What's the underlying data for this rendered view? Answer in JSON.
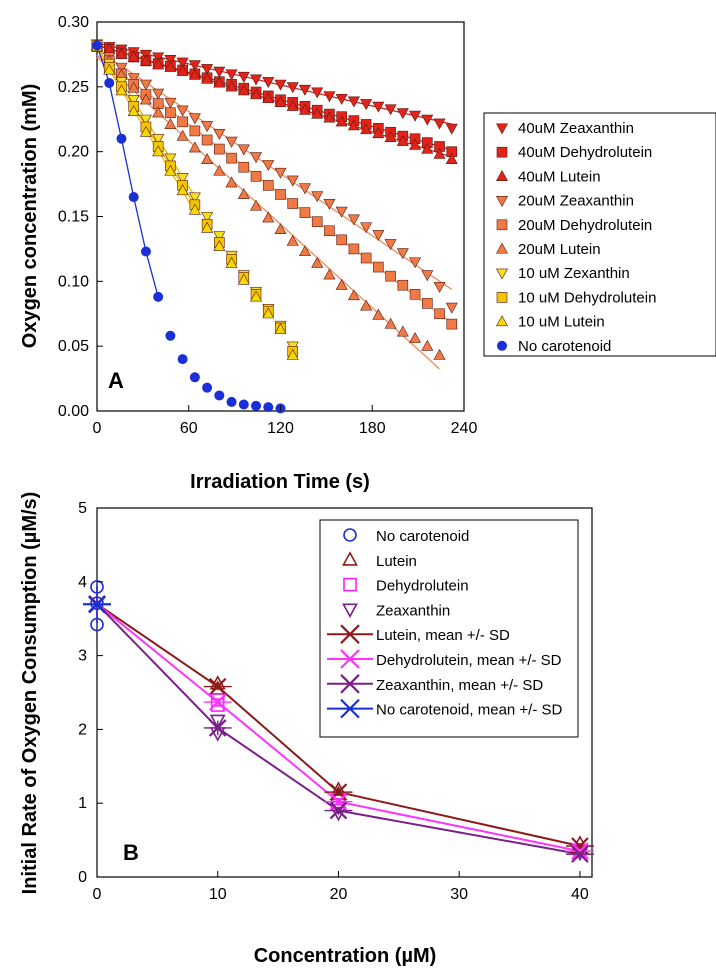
{
  "chart_data": [
    {
      "panel": "A",
      "type": "scatter",
      "xlabel": "Irradiation Time (s)",
      "ylabel": "Oxygen concentration (mM)",
      "xlim": [
        0,
        240
      ],
      "ylim": [
        0.0,
        0.3
      ],
      "xticks": [
        "0",
        "60",
        "120",
        "180",
        "240"
      ],
      "yticks": [
        "0.00",
        "0.05",
        "0.10",
        "0.15",
        "0.20",
        "0.25",
        "0.30"
      ],
      "legend_position": "right",
      "series": [
        {
          "name": "40uM Zeaxanthin",
          "marker": "triangle-down",
          "color": "#e2231a",
          "fit": true,
          "fit_color": "#c62828",
          "x": [
            0,
            8,
            16,
            24,
            32,
            40,
            48,
            56,
            64,
            72,
            80,
            88,
            96,
            104,
            112,
            120,
            128,
            136,
            144,
            152,
            160,
            168,
            176,
            184,
            192,
            200,
            208,
            216,
            224,
            232
          ],
          "y": [
            0.283,
            0.281,
            0.279,
            0.277,
            0.275,
            0.273,
            0.271,
            0.269,
            0.267,
            0.264,
            0.262,
            0.26,
            0.258,
            0.256,
            0.254,
            0.252,
            0.25,
            0.248,
            0.246,
            0.243,
            0.241,
            0.239,
            0.237,
            0.235,
            0.233,
            0.23,
            0.228,
            0.225,
            0.222,
            0.218
          ]
        },
        {
          "name": "40uM Dehydrolutein",
          "marker": "square",
          "color": "#e2231a",
          "fit": true,
          "fit_color": "#c62828",
          "x": [
            0,
            8,
            16,
            24,
            32,
            40,
            48,
            56,
            64,
            72,
            80,
            88,
            96,
            104,
            112,
            120,
            128,
            136,
            144,
            152,
            160,
            168,
            176,
            184,
            192,
            200,
            208,
            216,
            224,
            232
          ],
          "y": [
            0.282,
            0.279,
            0.276,
            0.273,
            0.27,
            0.268,
            0.266,
            0.263,
            0.26,
            0.257,
            0.254,
            0.252,
            0.249,
            0.246,
            0.243,
            0.24,
            0.238,
            0.235,
            0.232,
            0.229,
            0.227,
            0.224,
            0.221,
            0.218,
            0.215,
            0.212,
            0.21,
            0.207,
            0.204,
            0.2
          ]
        },
        {
          "name": "40uM Lutein",
          "marker": "triangle-up",
          "color": "#e2231a",
          "fit": true,
          "fit_color": "#c62828",
          "x": [
            0,
            8,
            16,
            24,
            32,
            40,
            48,
            56,
            64,
            72,
            80,
            88,
            96,
            104,
            112,
            120,
            128,
            136,
            144,
            152,
            160,
            168,
            176,
            184,
            192,
            200,
            208,
            216,
            224,
            232
          ],
          "y": [
            0.282,
            0.279,
            0.275,
            0.273,
            0.27,
            0.267,
            0.265,
            0.262,
            0.259,
            0.256,
            0.253,
            0.25,
            0.247,
            0.244,
            0.241,
            0.238,
            0.235,
            0.232,
            0.229,
            0.226,
            0.223,
            0.22,
            0.217,
            0.214,
            0.211,
            0.208,
            0.205,
            0.202,
            0.198,
            0.194
          ]
        },
        {
          "name": "20uM Zeaxanthin",
          "marker": "triangle-down",
          "color": "#f07a45",
          "fit": true,
          "fit_color": "#f08a5d",
          "x": [
            0,
            8,
            16,
            24,
            32,
            40,
            48,
            56,
            64,
            72,
            80,
            88,
            96,
            104,
            112,
            120,
            128,
            136,
            144,
            152,
            160,
            168,
            176,
            184,
            192,
            200,
            208,
            216,
            224,
            232
          ],
          "y": [
            0.283,
            0.273,
            0.265,
            0.257,
            0.252,
            0.245,
            0.238,
            0.232,
            0.226,
            0.22,
            0.214,
            0.208,
            0.202,
            0.196,
            0.19,
            0.184,
            0.178,
            0.172,
            0.166,
            0.16,
            0.154,
            0.148,
            0.142,
            0.136,
            0.129,
            0.122,
            0.115,
            0.105,
            0.096,
            0.08
          ]
        },
        {
          "name": "20uM Dehydrolutein",
          "marker": "square",
          "color": "#f07a45",
          "fit": true,
          "fit_color": "#f08a5d",
          "x": [
            0,
            8,
            16,
            24,
            32,
            40,
            48,
            56,
            64,
            72,
            80,
            88,
            96,
            104,
            112,
            120,
            128,
            136,
            144,
            152,
            160,
            168,
            176,
            184,
            192,
            200,
            208,
            216,
            224,
            232
          ],
          "y": [
            0.281,
            0.27,
            0.26,
            0.252,
            0.244,
            0.237,
            0.23,
            0.223,
            0.216,
            0.209,
            0.202,
            0.195,
            0.188,
            0.181,
            0.174,
            0.167,
            0.16,
            0.153,
            0.146,
            0.139,
            0.132,
            0.125,
            0.118,
            0.111,
            0.104,
            0.097,
            0.09,
            0.083,
            0.075,
            0.067
          ]
        },
        {
          "name": "20uM Lutein",
          "marker": "triangle-up",
          "color": "#f07a45",
          "fit": true,
          "fit_color": "#f08a5d",
          "x": [
            0,
            8,
            16,
            24,
            32,
            40,
            48,
            56,
            64,
            72,
            80,
            88,
            96,
            104,
            112,
            120,
            128,
            136,
            144,
            152,
            160,
            168,
            176,
            184,
            192,
            200,
            208,
            216,
            224
          ],
          "y": [
            0.281,
            0.27,
            0.259,
            0.249,
            0.24,
            0.23,
            0.221,
            0.212,
            0.203,
            0.194,
            0.185,
            0.176,
            0.167,
            0.158,
            0.149,
            0.14,
            0.131,
            0.123,
            0.114,
            0.105,
            0.097,
            0.089,
            0.081,
            0.074,
            0.067,
            0.061,
            0.056,
            0.05,
            0.043
          ]
        },
        {
          "name": "10 uM Zexanthin",
          "marker": "triangle-down",
          "color": "#f5e020",
          "fit": true,
          "fit_color": "#f0b800",
          "x": [
            0,
            8,
            16,
            24,
            32,
            40,
            48,
            56,
            64,
            72,
            80,
            88,
            96,
            104,
            112,
            120,
            128
          ],
          "y": [
            0.283,
            0.268,
            0.254,
            0.24,
            0.225,
            0.21,
            0.195,
            0.18,
            0.165,
            0.15,
            0.135,
            0.12,
            0.105,
            0.092,
            0.079,
            0.066,
            0.05
          ]
        },
        {
          "name": "10 uM Dehydrolutein",
          "marker": "square",
          "color": "#f5c400",
          "fit": true,
          "fit_color": "#f0b800",
          "x": [
            0,
            8,
            16,
            24,
            32,
            40,
            48,
            56,
            64,
            72,
            80,
            88,
            96,
            104,
            112,
            120,
            128
          ],
          "y": [
            0.282,
            0.265,
            0.25,
            0.235,
            0.219,
            0.204,
            0.189,
            0.174,
            0.159,
            0.144,
            0.13,
            0.117,
            0.103,
            0.09,
            0.077,
            0.064,
            0.046
          ]
        },
        {
          "name": "10 uM Lutein",
          "marker": "triangle-up",
          "color": "#f5d800",
          "fit": true,
          "fit_color": "#f0b800",
          "x": [
            0,
            8,
            16,
            24,
            32,
            40,
            48,
            56,
            64,
            72,
            80,
            88,
            96,
            104,
            112,
            120,
            128
          ],
          "y": [
            0.281,
            0.263,
            0.247,
            0.231,
            0.215,
            0.2,
            0.185,
            0.17,
            0.155,
            0.141,
            0.127,
            0.114,
            0.101,
            0.088,
            0.075,
            0.063,
            0.043
          ]
        },
        {
          "name": "No carotenoid",
          "marker": "circle",
          "color": "#1a2fd6",
          "fit": true,
          "fit_color": "#1a2fd6",
          "x": [
            0,
            8,
            16,
            24,
            32,
            40,
            48,
            56,
            64,
            72,
            80,
            88,
            96,
            104,
            112,
            120,
            128
          ],
          "y": [
            0.282,
            0.253,
            0.21,
            0.165,
            0.123,
            0.088,
            0.058,
            0.04,
            0.026,
            0.018,
            0.012,
            0.007,
            0.005,
            0.004,
            0.003,
            0.002,
            0.001
          ]
        }
      ]
    },
    {
      "panel": "B",
      "type": "line",
      "xlabel": "Concentration (µM)",
      "ylabel": "Initial Rate of Oxygen Consumption (µM/s)",
      "xlim": [
        0,
        41
      ],
      "ylim": [
        0,
        5
      ],
      "xticks": [
        "0",
        "10",
        "20",
        "30",
        "40"
      ],
      "yticks": [
        "0",
        "1",
        "2",
        "3",
        "4",
        "5"
      ],
      "legend_position": "top-right",
      "series": [
        {
          "name": "No carotenoid",
          "marker": "circle-open",
          "color": "#1a2fd6",
          "x": [
            0,
            0,
            0
          ],
          "y": [
            3.93,
            3.71,
            3.42
          ]
        },
        {
          "name": "Lutein",
          "marker": "triangle-up-open",
          "color": "#8b1a1a",
          "x": [
            10,
            10,
            20,
            20,
            40
          ],
          "y": [
            2.62,
            2.55,
            1.18,
            1.12,
            0.45
          ]
        },
        {
          "name": "Dehydrolutein",
          "marker": "square-open",
          "color": "#ff20ff",
          "x": [
            10,
            10,
            20,
            20,
            40
          ],
          "y": [
            2.4,
            2.33,
            1.06,
            0.98,
            0.36
          ]
        },
        {
          "name": "Zeaxanthin",
          "marker": "triangle-down-open",
          "color": "#7a1f8a",
          "x": [
            10,
            10,
            20,
            20,
            40
          ],
          "y": [
            2.12,
            1.95,
            0.95,
            0.87,
            0.33
          ]
        },
        {
          "name": "Lutein, mean +/- SD",
          "marker": "x-cross",
          "color": "#8b1a1a",
          "line": true,
          "x": [
            0,
            10,
            20,
            40
          ],
          "y": [
            3.7,
            2.58,
            1.15,
            0.42
          ],
          "sd": [
            0.25,
            0.05,
            0.05,
            0.04
          ]
        },
        {
          "name": "Dehydrolutein, mean +/- SD",
          "marker": "x-cross",
          "color": "#ff33ff",
          "line": true,
          "x": [
            0,
            10,
            20,
            40
          ],
          "y": [
            3.7,
            2.37,
            1.02,
            0.35
          ],
          "sd": [
            0.25,
            0.05,
            0.05,
            0.03
          ]
        },
        {
          "name": "Zeaxanthin, mean +/- SD",
          "marker": "x-cross",
          "color": "#7a1f8a",
          "line": true,
          "x": [
            0,
            10,
            20,
            40
          ],
          "y": [
            3.7,
            2.02,
            0.9,
            0.31
          ],
          "sd": [
            0.25,
            0.1,
            0.05,
            0.03
          ]
        },
        {
          "name": "No carotenoid, mean +/- SD",
          "marker": "x-cross",
          "color": "#1a2fd6",
          "line": false,
          "x": [
            0
          ],
          "y": [
            3.69
          ],
          "sd": [
            0.28
          ]
        }
      ]
    }
  ]
}
